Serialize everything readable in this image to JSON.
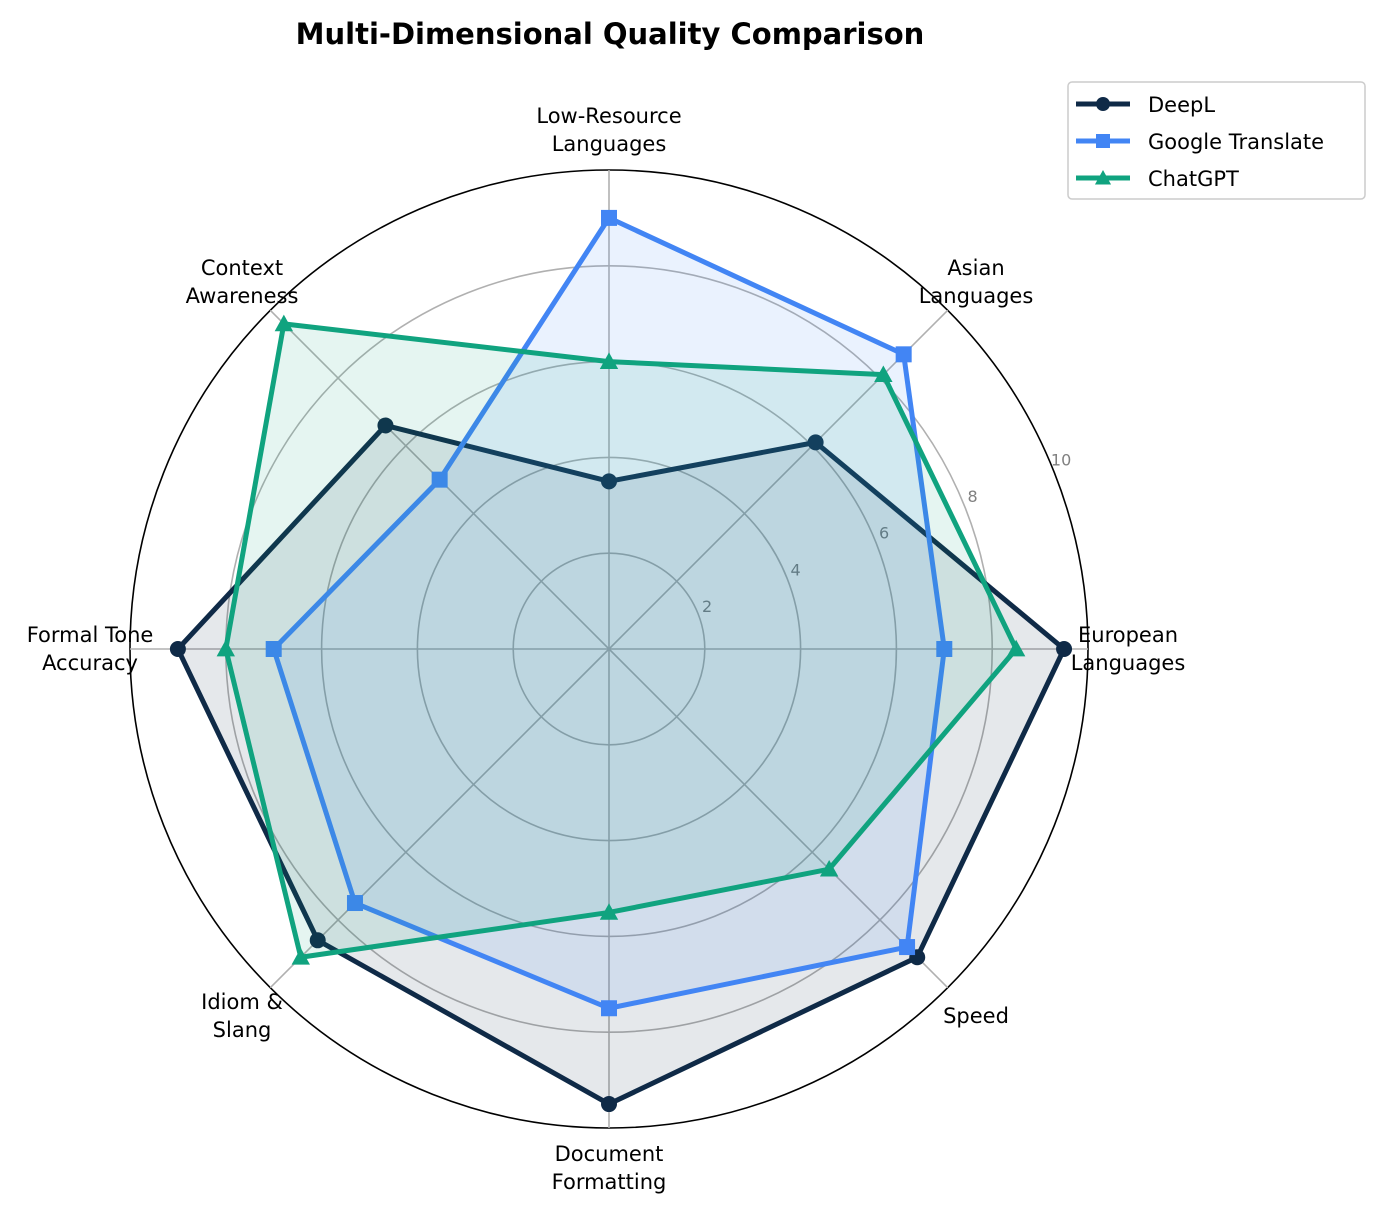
{
  "chart_data": {
    "type": "radar",
    "title": "Multi-Dimensional Quality Comparison",
    "axes": [
      "European\nLanguages",
      "Asian\nLanguages",
      "Low-Resource\nLanguages",
      "Context\nAwareness",
      "Formal Tone\nAccuracy",
      "Idiom &\nSlang",
      "Document\nFormatting",
      "Speed"
    ],
    "rlim": [
      0,
      10
    ],
    "rticks": [
      2,
      4,
      6,
      8,
      10
    ],
    "rtick_labels": [
      "2",
      "4",
      "6",
      "8",
      "10"
    ],
    "grid": true,
    "legend_position": "top-right",
    "series": [
      {
        "name": "DeepL",
        "color": "#0f2a47",
        "marker": "circle",
        "values": [
          9.5,
          6.1,
          3.5,
          6.6,
          9.0,
          8.6,
          9.5,
          9.1
        ]
      },
      {
        "name": "Google Translate",
        "color": "#4285f4",
        "marker": "square",
        "values": [
          7.0,
          8.7,
          9.0,
          5.0,
          7.0,
          7.5,
          7.5,
          8.8
        ]
      },
      {
        "name": "ChatGPT",
        "color": "#10a37f",
        "marker": "triangle",
        "values": [
          8.5,
          8.1,
          6.0,
          9.6,
          8.0,
          9.1,
          5.5,
          6.5
        ]
      }
    ]
  }
}
